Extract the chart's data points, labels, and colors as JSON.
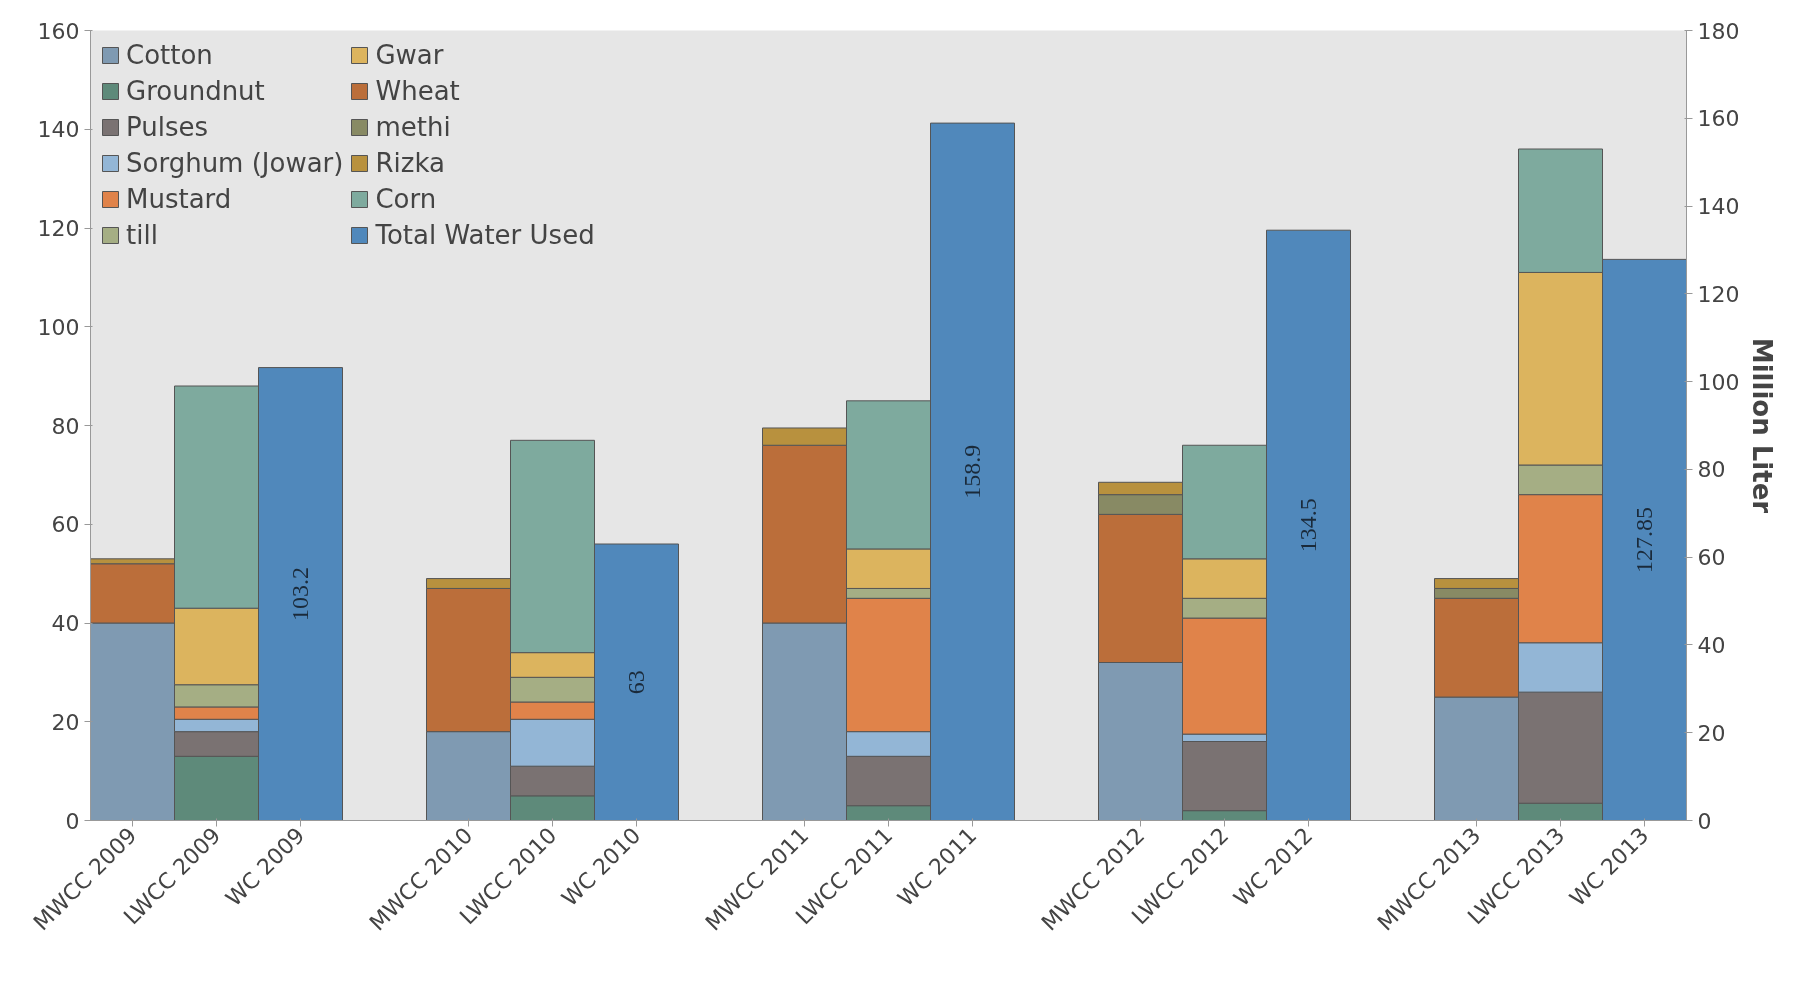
{
  "chart_data": {
    "type": "bar",
    "stacked": true,
    "categories": [
      "MWCC 2009",
      "LWCC 2009",
      "WC 2009",
      "MWCC 2010",
      "LWCC 2010",
      "WC 2010",
      "MWCC 2011",
      "LWCC 2011",
      "WC 2011",
      "MWCC 2012",
      "LWCC 2012",
      "WC 2012",
      "MWCC 2013",
      "LWCC 2013",
      "WC 2013"
    ],
    "series": [
      {
        "name": "Cotton",
        "color": "#7f9ab2",
        "values": [
          40,
          null,
          null,
          18,
          null,
          null,
          40,
          null,
          null,
          32,
          null,
          null,
          25,
          null,
          null
        ]
      },
      {
        "name": "Groundnut",
        "color": "#5e8a7a",
        "values": [
          null,
          13,
          null,
          null,
          5,
          null,
          null,
          3,
          null,
          null,
          2,
          null,
          null,
          3.5,
          null
        ]
      },
      {
        "name": "Pulses",
        "color": "#7a7272",
        "values": [
          null,
          5,
          null,
          null,
          6,
          null,
          null,
          10,
          null,
          null,
          14,
          null,
          null,
          22.5,
          null
        ]
      },
      {
        "name": "Sorghum (Jowar)",
        "color": "#93b6d6",
        "values": [
          null,
          2.5,
          null,
          null,
          9.5,
          null,
          null,
          5,
          null,
          null,
          1.5,
          null,
          null,
          10,
          null
        ]
      },
      {
        "name": "Mustard",
        "color": "#e0834a",
        "values": [
          null,
          2.5,
          null,
          null,
          3.5,
          null,
          null,
          27,
          null,
          null,
          23.5,
          null,
          null,
          30,
          null
        ]
      },
      {
        "name": "till",
        "color": "#a5ae84",
        "values": [
          null,
          4.5,
          null,
          null,
          5,
          null,
          null,
          2,
          null,
          null,
          4,
          null,
          null,
          6,
          null
        ]
      },
      {
        "name": "Gwar",
        "color": "#dcb45e",
        "values": [
          null,
          15.5,
          null,
          null,
          5,
          null,
          null,
          8,
          null,
          null,
          8,
          null,
          null,
          39,
          null
        ]
      },
      {
        "name": "Wheat",
        "color": "#bb6e3a",
        "values": [
          12,
          null,
          null,
          29,
          null,
          null,
          36,
          null,
          null,
          30,
          null,
          null,
          20,
          null,
          null
        ]
      },
      {
        "name": "methi",
        "color": "#888a64",
        "values": [
          null,
          null,
          null,
          null,
          null,
          null,
          null,
          null,
          null,
          4,
          null,
          null,
          2,
          null,
          null
        ]
      },
      {
        "name": "Rizka",
        "color": "#b8913e",
        "values": [
          1,
          null,
          null,
          2,
          null,
          null,
          3.5,
          null,
          null,
          2.5,
          null,
          null,
          2,
          null,
          null
        ]
      },
      {
        "name": "Corn",
        "color": "#7eaa9e",
        "values": [
          null,
          45,
          null,
          null,
          43,
          null,
          null,
          30,
          null,
          null,
          23,
          null,
          null,
          25,
          null
        ]
      },
      {
        "name": "Total Water Used",
        "color": "#5088bb",
        "type": "bar",
        "axis": "y2",
        "values": [
          null,
          null,
          103.2,
          null,
          null,
          63,
          null,
          null,
          158.9,
          null,
          null,
          134.5,
          null,
          null,
          127.85
        ],
        "value_labels": [
          null,
          null,
          "103.2",
          null,
          null,
          "63",
          null,
          null,
          "158.9",
          null,
          null,
          "134.5",
          null,
          null,
          "127.85"
        ]
      }
    ],
    "ylim": [
      0,
      160
    ],
    "yticks": [
      0,
      20,
      40,
      60,
      80,
      100,
      120,
      140,
      160
    ],
    "y2lim": [
      0,
      180
    ],
    "y2ticks": [
      0,
      20,
      40,
      60,
      80,
      100,
      120,
      140,
      160,
      180
    ],
    "y2label": "Million Liter",
    "legend": "top left"
  }
}
